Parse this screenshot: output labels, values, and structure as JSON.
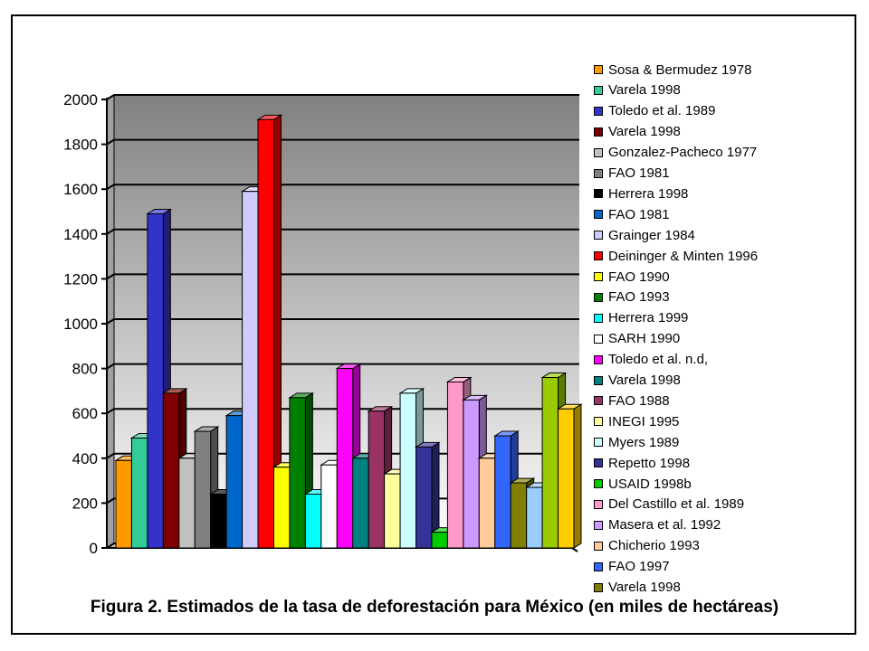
{
  "caption": "Figura 2. Estimados de la tasa de deforestación para México (en miles de hectáreas)",
  "chart_data": {
    "type": "bar",
    "title": "",
    "xlabel": "",
    "ylabel": "",
    "ylim": [
      0,
      2000
    ],
    "yticks": [
      0,
      200,
      400,
      600,
      800,
      1000,
      1200,
      1400,
      1600,
      1800,
      2000
    ],
    "grid": true,
    "three_d": true,
    "legend_position": "right",
    "series": [
      {
        "name": "Sosa & Bermudez 1978",
        "value": 390,
        "color": "#FF9900"
      },
      {
        "name": "Varela 1998",
        "value": 490,
        "color": "#33CC99"
      },
      {
        "name": "Toledo et al. 1989",
        "value": 1490,
        "color": "#3333CC"
      },
      {
        "name": "Varela 1998",
        "value": 690,
        "color": "#800000"
      },
      {
        "name": "Gonzalez-Pacheco 1977",
        "value": 400,
        "color": "#C0C0C0"
      },
      {
        "name": "FAO 1981",
        "value": 520,
        "color": "#808080"
      },
      {
        "name": "Herrera 1998",
        "value": 240,
        "color": "#000000"
      },
      {
        "name": "FAO 1981",
        "value": 590,
        "color": "#0066CC"
      },
      {
        "name": "Grainger 1984",
        "value": 1590,
        "color": "#CCCCFF"
      },
      {
        "name": "Deininger & Minten 1996",
        "value": 1910,
        "color": "#FF0000"
      },
      {
        "name": "FAO 1990",
        "value": 360,
        "color": "#FFFF00"
      },
      {
        "name": "FAO 1993",
        "value": 670,
        "color": "#008000"
      },
      {
        "name": "Herrera 1999",
        "value": 240,
        "color": "#00FFFF"
      },
      {
        "name": "SARH 1990",
        "value": 370,
        "color": "#FFFFFF"
      },
      {
        "name": "Toledo et al. n.d,",
        "value": 800,
        "color": "#FF00FF"
      },
      {
        "name": "Varela 1998",
        "value": 400,
        "color": "#008080"
      },
      {
        "name": "FAO 1988",
        "value": 610,
        "color": "#993366"
      },
      {
        "name": "INEGI 1995",
        "value": 330,
        "color": "#FFFF99"
      },
      {
        "name": "Myers 1989",
        "value": 690,
        "color": "#CCFFFF"
      },
      {
        "name": "Repetto 1998",
        "value": 450,
        "color": "#333399"
      },
      {
        "name": "USAID 1998b",
        "value": 70,
        "color": "#00CC00"
      },
      {
        "name": "Del Castillo et al. 1989",
        "value": 740,
        "color": "#FF99CC"
      },
      {
        "name": "Masera et al. 1992",
        "value": 660,
        "color": "#CC99FF"
      },
      {
        "name": "Chicherio 1993",
        "value": 400,
        "color": "#FFCC99"
      },
      {
        "name": "FAO 1997",
        "value": 500,
        "color": "#3366FF"
      },
      {
        "name": "Varela 1998",
        "value": 290,
        "color": "#808000"
      },
      {
        "name": "",
        "value": 270,
        "color": "#99CCFF"
      },
      {
        "name": "",
        "value": 760,
        "color": "#99CC00"
      },
      {
        "name": "",
        "value": 620,
        "color": "#FFCC00"
      }
    ]
  }
}
